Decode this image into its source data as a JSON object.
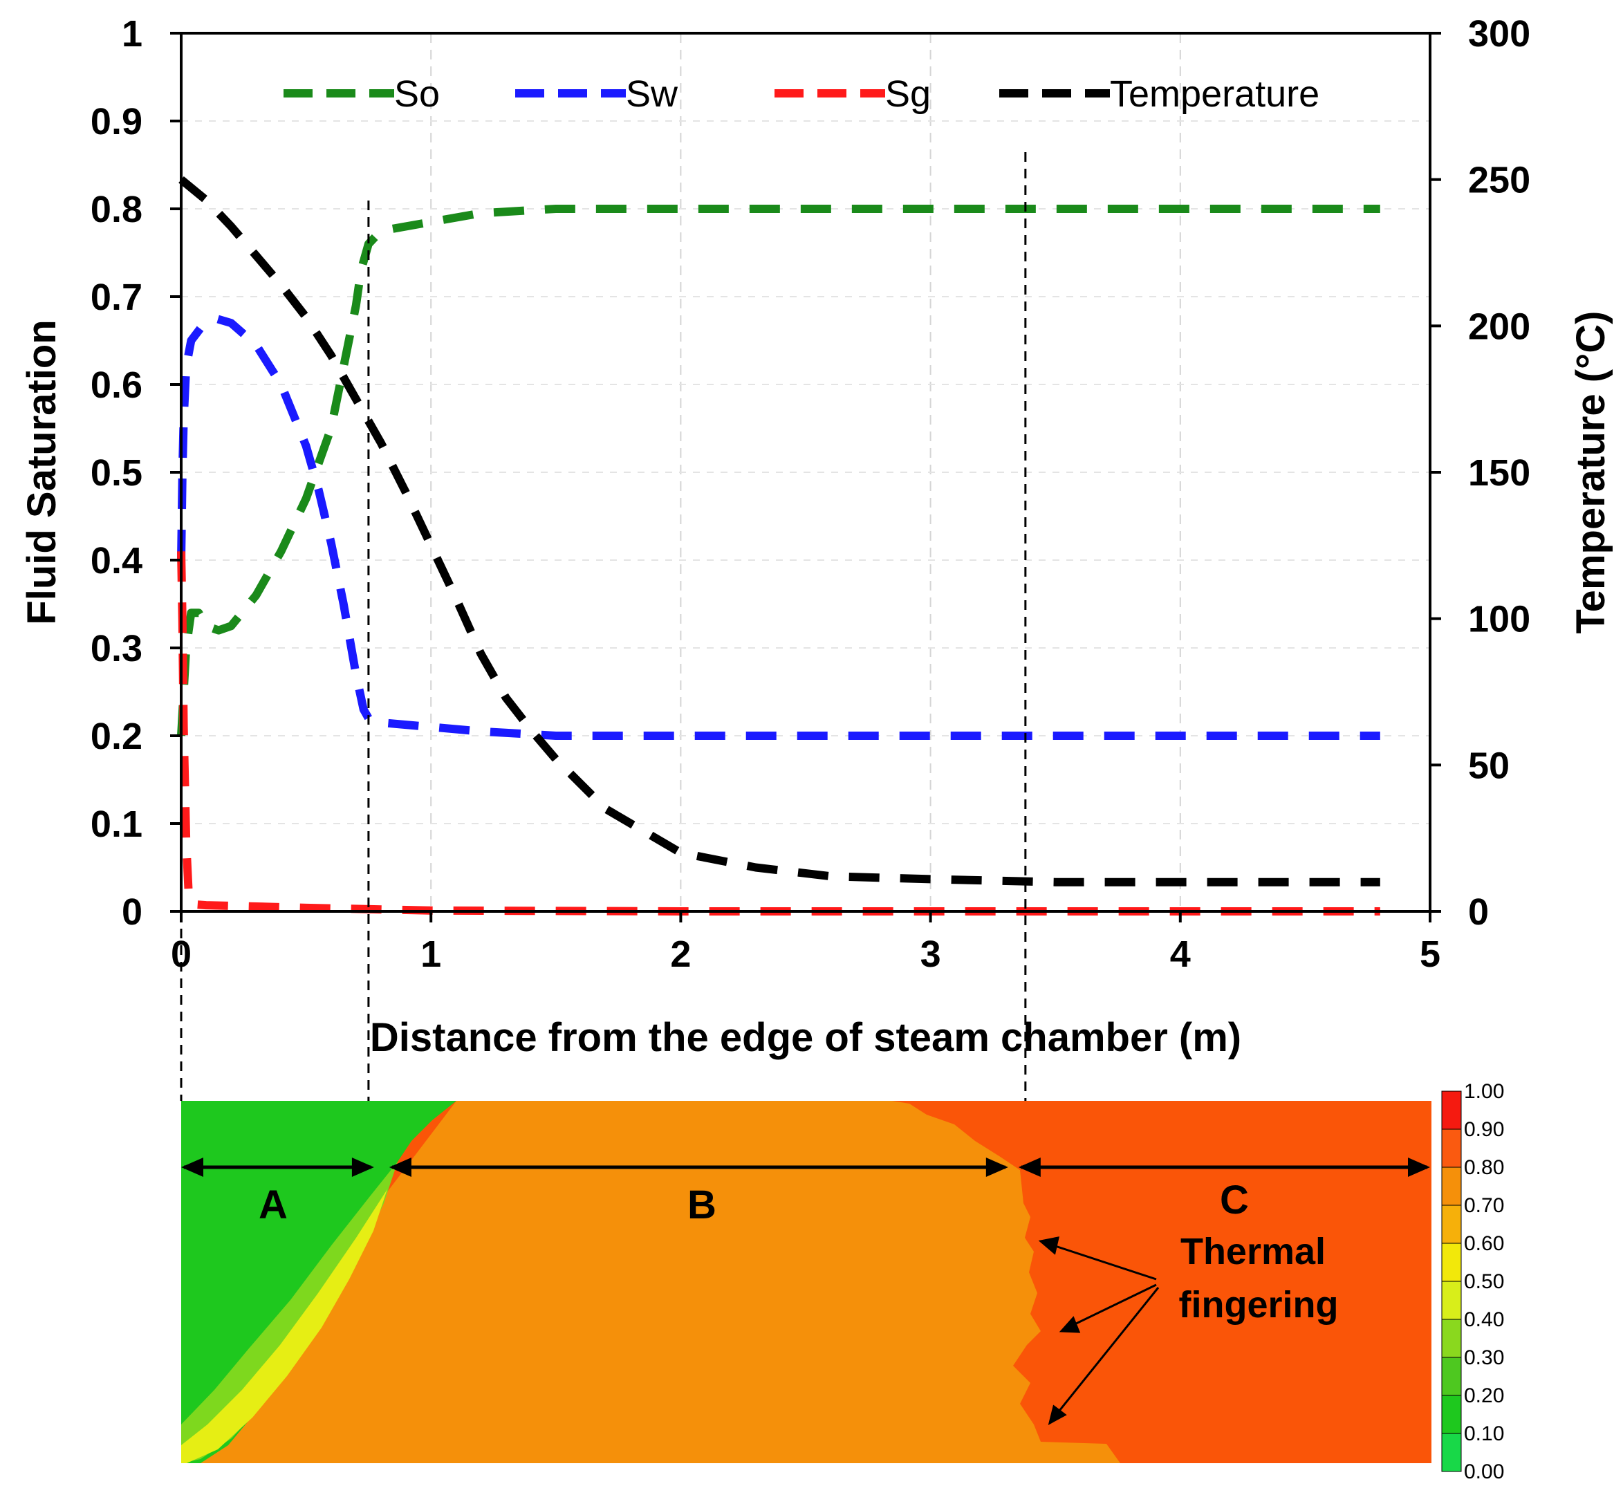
{
  "chart_data": {
    "type": "line",
    "title": "",
    "xlabel": "Distance from the edge of steam chamber (m)",
    "ylabel": "Fluid Saturation",
    "y2label": "Temperature (°C)",
    "xlim": [
      0,
      5
    ],
    "ylim": [
      0,
      1
    ],
    "y2lim": [
      0,
      300
    ],
    "xticks": [
      "0",
      "1",
      "2",
      "3",
      "4",
      "5"
    ],
    "yticks": [
      "0",
      "0.1",
      "0.2",
      "0.3",
      "0.4",
      "0.5",
      "0.6",
      "0.7",
      "0.8",
      "0.9",
      "1"
    ],
    "y2ticks": [
      "0",
      "50",
      "100",
      "150",
      "200",
      "250",
      "300"
    ],
    "grid": true,
    "legend_position": "top",
    "series": [
      {
        "name": "So",
        "axis": "left",
        "color": "#1a8a1a",
        "x": [
          0,
          0.01,
          0.02,
          0.04,
          0.07,
          0.1,
          0.15,
          0.2,
          0.3,
          0.4,
          0.5,
          0.6,
          0.65,
          0.7,
          0.72,
          0.75,
          0.8,
          1.0,
          1.2,
          1.5,
          2,
          3,
          4,
          4.8
        ],
        "y": [
          0.2,
          0.25,
          0.3,
          0.34,
          0.34,
          0.325,
          0.32,
          0.325,
          0.36,
          0.41,
          0.47,
          0.55,
          0.62,
          0.69,
          0.73,
          0.76,
          0.775,
          0.785,
          0.795,
          0.8,
          0.8,
          0.8,
          0.8,
          0.8
        ]
      },
      {
        "name": "Sw",
        "axis": "left",
        "color": "#1a1aff",
        "x": [
          0,
          0.005,
          0.01,
          0.02,
          0.04,
          0.08,
          0.14,
          0.2,
          0.3,
          0.4,
          0.5,
          0.55,
          0.6,
          0.65,
          0.7,
          0.73,
          0.75,
          0.8,
          1.0,
          1.2,
          1.5,
          2,
          3,
          4,
          4.8
        ],
        "y": [
          0.4,
          0.5,
          0.56,
          0.62,
          0.65,
          0.665,
          0.675,
          0.67,
          0.645,
          0.6,
          0.53,
          0.48,
          0.42,
          0.35,
          0.27,
          0.23,
          0.22,
          0.215,
          0.21,
          0.205,
          0.2,
          0.2,
          0.2,
          0.2,
          0.2
        ]
      },
      {
        "name": "Sg",
        "axis": "left",
        "color": "#ff1a1a",
        "x": [
          0,
          0.005,
          0.01,
          0.02,
          0.03,
          0.05,
          0.1,
          0.5,
          1,
          2,
          3,
          4,
          4.8
        ],
        "y": [
          0.41,
          0.33,
          0.21,
          0.08,
          0.02,
          0.008,
          0.007,
          0.004,
          0.001,
          0,
          0,
          0,
          0
        ]
      },
      {
        "name": "Temperature",
        "axis": "right",
        "color": "#000000",
        "x": [
          0,
          0.1,
          0.2,
          0.3,
          0.4,
          0.5,
          0.6,
          0.7,
          0.8,
          0.9,
          1.0,
          1.1,
          1.2,
          1.3,
          1.4,
          1.5,
          1.7,
          2.0,
          2.3,
          2.6,
          3.0,
          3.5,
          4.0,
          4.8
        ],
        "y": [
          250,
          243,
          234,
          224,
          214,
          203,
          190,
          175,
          160,
          143,
          125,
          107,
          88,
          73,
          62,
          52,
          35,
          20,
          15,
          12,
          11,
          10,
          10,
          10
        ]
      }
    ],
    "zone_boundaries_x": [
      0,
      0.75,
      3.38,
      5
    ],
    "colormap": {
      "ticks": [
        "1.00",
        "0.90",
        "0.80",
        "0.70",
        "0.60",
        "0.50",
        "0.40",
        "0.30",
        "0.20",
        "0.10",
        "0.00"
      ],
      "colors": [
        "#f51a10",
        "#fa5a10",
        "#f5900a",
        "#f6b00a",
        "#f2e80a",
        "#d8ee1a",
        "#8ad81e",
        "#4ec820",
        "#1ec81e",
        "#18d848",
        "#28e878"
      ]
    },
    "zones": [
      {
        "label": "A",
        "color": "#1ec81e"
      },
      {
        "label": "B",
        "color": "#f5900a"
      },
      {
        "label": "C",
        "color": "#fa5508"
      }
    ],
    "annotation": [
      "Thermal",
      "fingering"
    ]
  }
}
